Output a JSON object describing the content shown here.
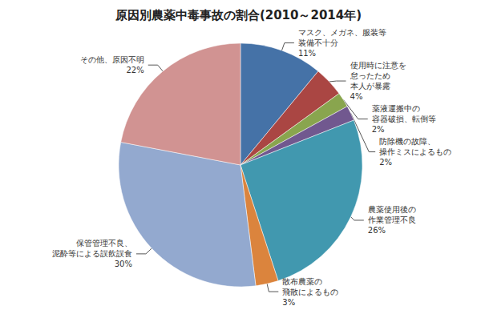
{
  "chart_data": {
    "type": "pie",
    "title": "原因別農薬中毒事故の割合(2010～2014年)",
    "categories": [
      "マスク、メガネ、服装等\n装備不十分",
      "使用時に注意を\n怠ったため\n本人が暴露",
      "薬液運搬中の\n容器破損、転倒等",
      "防除機の故障、\n操作ミスによるもの",
      "農薬使用後の\n作業管理不良",
      "散布農薬の\n飛散によるもの",
      "保管管理不良、\n泥酔等による誤飲誤食",
      "その他、原因不明"
    ],
    "values": [
      11,
      4,
      2,
      2,
      26,
      3,
      30,
      22
    ],
    "value_labels": [
      "11%",
      "4%",
      "2%",
      "2%",
      "26%",
      "3%",
      "30%",
      "22%"
    ],
    "colors": [
      "#4572A7",
      "#AA4643",
      "#89A54E",
      "#71588F",
      "#4198AF",
      "#DB843D",
      "#93A9CF",
      "#D19392"
    ],
    "data_labels": true
  }
}
